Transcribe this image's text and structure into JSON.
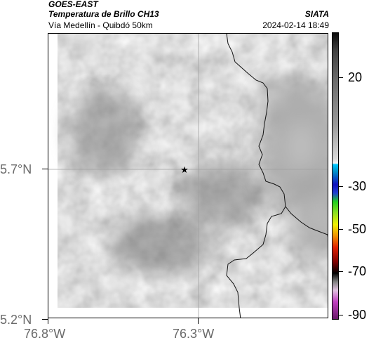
{
  "header": {
    "satellite": "GOES-EAST",
    "product": "Temperatura de Brillo CH13",
    "region": "Vía Medellín - Quibdó 50km",
    "brand": "SIATA",
    "timestamp": "2024-02-14 18:49"
  },
  "map": {
    "lat_labels": [
      "5.7°N",
      "5.2°N"
    ],
    "lon_labels": [
      "76.8°W",
      "76.3°W"
    ],
    "marker_icon": "star-icon"
  },
  "colorbar": {
    "tick_labels": [
      "20",
      "-30",
      "-50",
      "-70",
      "-90"
    ],
    "colors": {
      "warm_gray": "#808080",
      "cyan": "#00c8ff",
      "blue": "#1010c0",
      "green": "#20d020",
      "yellow": "#f0f000",
      "red": "#e02000",
      "black": "#000000",
      "magenta": "#c040c0"
    }
  },
  "colors": {
    "field_dark": "#777777",
    "field_mid": "#858585",
    "field_light": "#b8b8b8",
    "border_line": "#111111",
    "grid_line": "#a0a0a0"
  }
}
